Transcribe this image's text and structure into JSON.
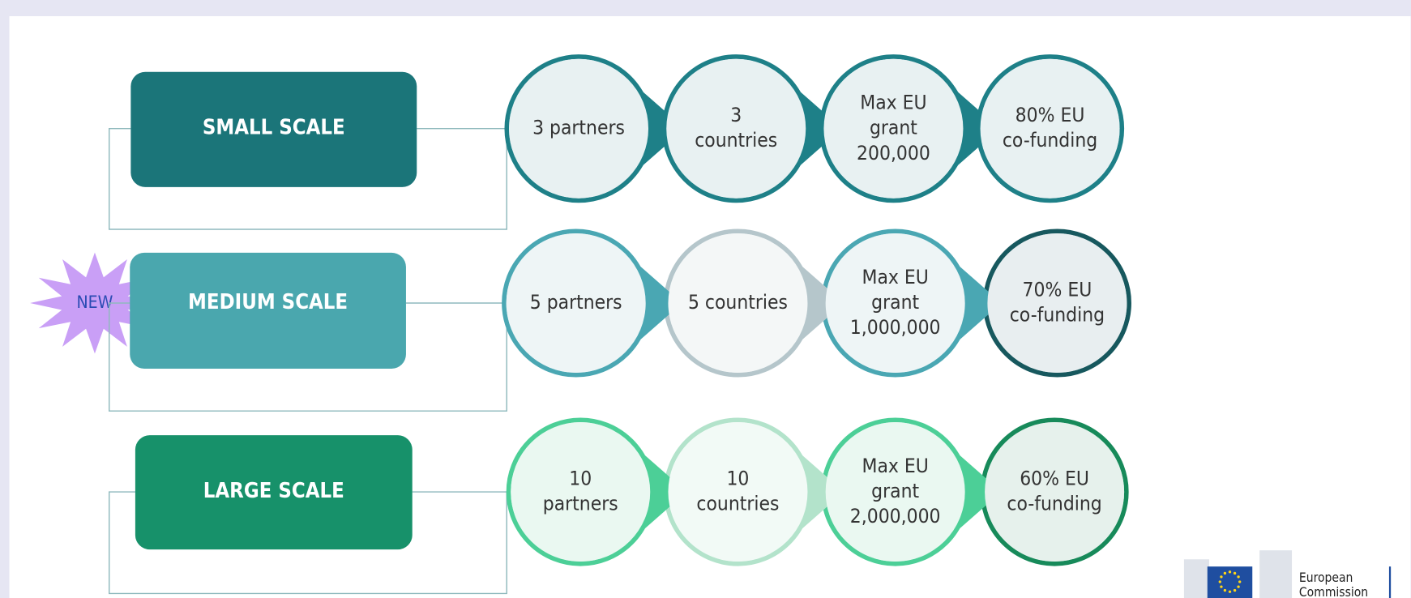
{
  "badge": "NEW",
  "rows": [
    {
      "label": "SMALL SCALE",
      "circles": [
        [
          "3 partners"
        ],
        [
          "3",
          "countries"
        ],
        [
          "Max EU",
          "grant",
          "200,000"
        ],
        [
          "80% EU",
          "co-funding"
        ]
      ]
    },
    {
      "label": "MEDIUM SCALE",
      "circles": [
        [
          "5 partners"
        ],
        [
          "5 countries"
        ],
        [
          "Max EU",
          "grant",
          "1,000,000"
        ],
        [
          "70% EU",
          "co-funding"
        ]
      ]
    },
    {
      "label": "LARGE SCALE",
      "circles": [
        [
          "10",
          "partners"
        ],
        [
          "10",
          "countries"
        ],
        [
          "Max EU",
          "grant",
          "2,000,000"
        ],
        [
          "60% EU",
          "co-funding"
        ]
      ]
    }
  ],
  "logo": [
    "European",
    "Commission"
  ]
}
